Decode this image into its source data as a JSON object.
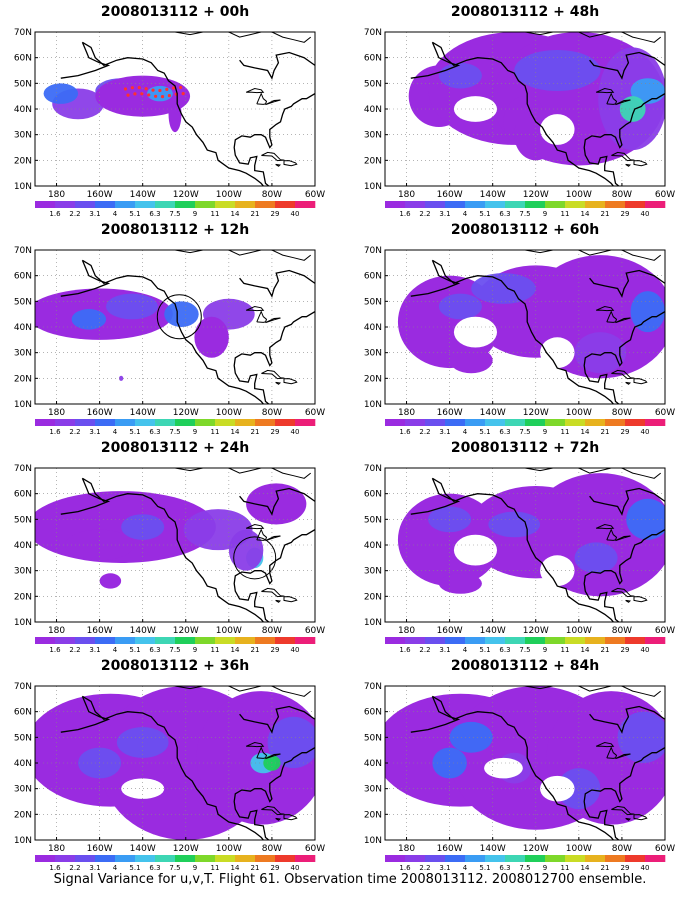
{
  "panels": [
    {
      "title": "2008013112 + 00h",
      "lead_hours": 0
    },
    {
      "title": "2008013112 + 48h",
      "lead_hours": 48
    },
    {
      "title": "2008013112 + 12h",
      "lead_hours": 12
    },
    {
      "title": "2008013112 + 60h",
      "lead_hours": 60
    },
    {
      "title": "2008013112 + 24h",
      "lead_hours": 24
    },
    {
      "title": "2008013112 + 72h",
      "lead_hours": 72
    },
    {
      "title": "2008013112 + 36h",
      "lead_hours": 36
    },
    {
      "title": "2008013112 + 84h",
      "lead_hours": 84
    }
  ],
  "map": {
    "lon_range": [
      -190,
      -60
    ],
    "lat_range": [
      10,
      70
    ],
    "lon_ticks": [
      "180",
      "160W",
      "140W",
      "120W",
      "100W",
      "80W",
      "60W"
    ],
    "lat_ticks": [
      "10N",
      "20N",
      "30N",
      "40N",
      "50N",
      "60N",
      "70N"
    ],
    "grid": "dotted"
  },
  "legend": {
    "labels": [
      "1.6",
      "2.2",
      "3.1",
      "4",
      "5.1",
      "6.3",
      "7.5",
      "9",
      "11",
      "14",
      "21",
      "29",
      "40"
    ],
    "colors": [
      "#9a2be0",
      "#8a3de8",
      "#6a4fef",
      "#3c6cf5",
      "#3a9cf4",
      "#45c3ec",
      "#3dd6b4",
      "#1fcf5a",
      "#7ed82a",
      "#c9dc25",
      "#e7b21e",
      "#ee7a21",
      "#ee3a2c",
      "#ec1e78"
    ]
  },
  "caption": "Signal Variance for u,v,T. Flight 61. Observation time 2008013112. 2008012700 ensemble."
}
